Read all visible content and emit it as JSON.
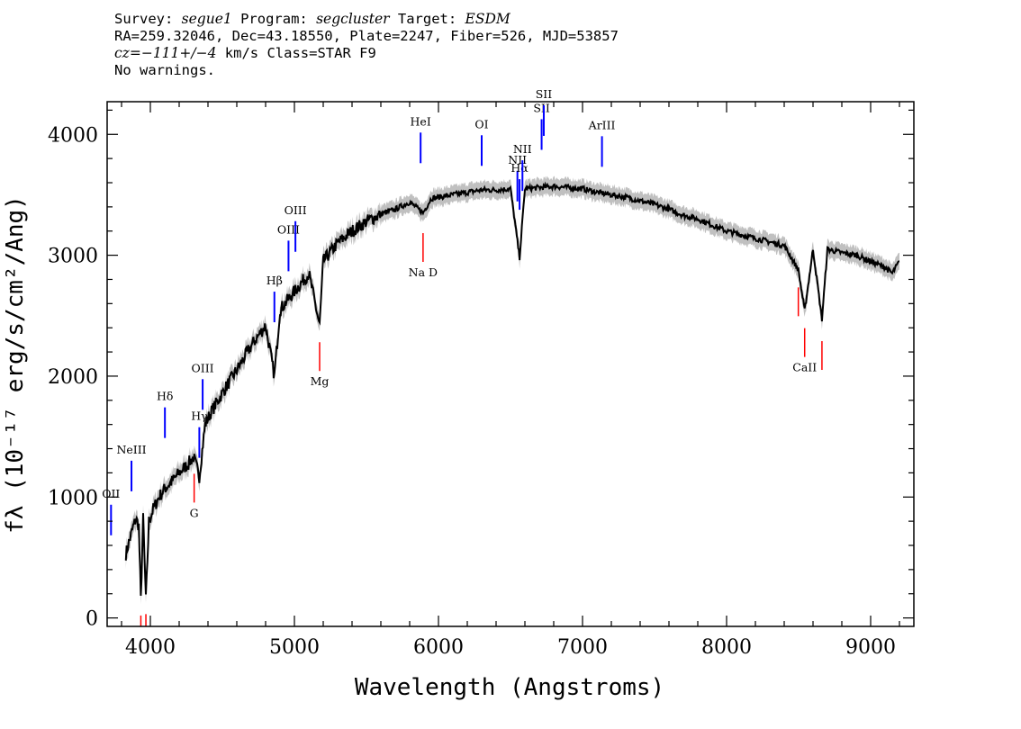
{
  "header": {
    "line1_survey_label": "Survey:",
    "line1_survey_value": "segue1",
    "line1_program_label": "Program:",
    "line1_program_value": "segcluster",
    "line1_target_label": "Target:",
    "line1_target_value": "ESDM",
    "line2": "RA=259.32046, Dec=43.18550, Plate=2247, Fiber=526, MJD=53857",
    "line3_cz": "cz=−111+/−4",
    "line3_rest": " km/s Class=STAR F9",
    "line4": "No warnings."
  },
  "chart_data": {
    "type": "line",
    "xlabel": "Wavelength (Angstroms)",
    "ylabel": "fλ (10⁻¹⁷ erg/s/cm²/Ang)",
    "xlim": [
      3700,
      9300
    ],
    "ylim": [
      -70,
      4270
    ],
    "x_ticks": [
      4000,
      5000,
      6000,
      7000,
      8000,
      9000
    ],
    "y_ticks": [
      0,
      1000,
      2000,
      3000,
      4000
    ],
    "grid": false,
    "colors": {
      "spectrum": "#000000",
      "error_band": "#c0c0c0",
      "emission": "#0000ff",
      "absorption": "#ff0000"
    },
    "series": [
      {
        "x": [
          3830,
          3850,
          3880,
          3900,
          3920,
          3934,
          3950,
          3969,
          3990,
          4020,
          4060,
          4101,
          4150,
          4200,
          4250,
          4300,
          4340,
          4380,
          4420,
          4470,
          4520,
          4600,
          4700,
          4800,
          4861,
          4900,
          5000,
          5100,
          5175,
          5200,
          5300,
          5400,
          5500,
          5600,
          5700,
          5800,
          5893,
          5950,
          6000,
          6100,
          6200,
          6300,
          6400,
          6500,
          6563,
          6600,
          6700,
          6800,
          6900,
          7000,
          7100,
          7200,
          7300,
          7400,
          7500,
          7600,
          7700,
          7800,
          7900,
          8000,
          8100,
          8200,
          8300,
          8400,
          8498,
          8542,
          8600,
          8662,
          8700,
          8800,
          8900,
          9000,
          9100,
          9150,
          9200
        ],
        "y": [
          530,
          620,
          750,
          820,
          760,
          150,
          820,
          150,
          800,
          900,
          1000,
          1070,
          1130,
          1200,
          1260,
          1330,
          1170,
          1600,
          1700,
          1800,
          1900,
          2050,
          2250,
          2420,
          2000,
          2550,
          2700,
          2850,
          2420,
          2950,
          3100,
          3200,
          3280,
          3340,
          3380,
          3440,
          3350,
          3470,
          3480,
          3500,
          3520,
          3540,
          3540,
          3550,
          2980,
          3550,
          3560,
          3570,
          3560,
          3550,
          3520,
          3500,
          3480,
          3450,
          3420,
          3380,
          3330,
          3300,
          3250,
          3200,
          3170,
          3140,
          3110,
          3080,
          2880,
          2540,
          3050,
          2470,
          3050,
          3020,
          3000,
          2950,
          2900,
          2850,
          2950
        ],
        "band_halfwidth": 70
      }
    ],
    "emission_lines": [
      {
        "label": "OII",
        "x": 3727
      },
      {
        "label": "NeIII",
        "x": 3869
      },
      {
        "label": "Hδ",
        "x": 4101
      },
      {
        "label": "Hγ",
        "x": 4340
      },
      {
        "label": "OIII",
        "x": 4363
      },
      {
        "label": "Hβ",
        "x": 4861
      },
      {
        "label": "OIII",
        "x": 4959
      },
      {
        "label": "OIII",
        "x": 5007
      },
      {
        "label": "HeI",
        "x": 5876
      },
      {
        "label": "OI",
        "x": 6300
      },
      {
        "label": "NII",
        "x": 6548
      },
      {
        "label": "Hα",
        "x": 6563
      },
      {
        "label": "NII",
        "x": 6583
      },
      {
        "label": "SII",
        "x": 6716
      },
      {
        "label": "SII",
        "x": 6731
      },
      {
        "label": "ArIII",
        "x": 7135
      }
    ],
    "absorption_lines": [
      {
        "label": "",
        "x": 3934
      },
      {
        "label": "",
        "x": 3969
      },
      {
        "label": "G",
        "x": 4304
      },
      {
        "label": "Mg",
        "x": 5175
      },
      {
        "label": "Na D",
        "x": 5893
      },
      {
        "label": "",
        "x": 8498
      },
      {
        "label": "CaII",
        "x": 8542
      },
      {
        "label": "",
        "x": 8662
      }
    ]
  }
}
